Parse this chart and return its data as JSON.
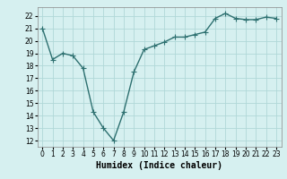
{
  "x": [
    0,
    1,
    2,
    3,
    4,
    5,
    6,
    7,
    8,
    9,
    10,
    11,
    12,
    13,
    14,
    15,
    16,
    17,
    18,
    19,
    20,
    21,
    22,
    23
  ],
  "y": [
    21.0,
    18.5,
    19.0,
    18.8,
    17.8,
    14.3,
    13.0,
    12.0,
    14.3,
    17.5,
    19.3,
    19.6,
    19.9,
    20.3,
    20.3,
    20.5,
    20.7,
    21.8,
    22.2,
    21.8,
    21.7,
    21.7,
    21.9,
    21.8
  ],
  "line_color": "#2d7070",
  "marker_color": "#2d7070",
  "bg_color": "#d6f0f0",
  "grid_color": "#b0d8d8",
  "xlabel": "Humidex (Indice chaleur)",
  "ylim": [
    11.5,
    22.7
  ],
  "xlim": [
    -0.5,
    23.5
  ],
  "yticks": [
    12,
    13,
    14,
    15,
    16,
    17,
    18,
    19,
    20,
    21,
    22
  ],
  "xticks": [
    0,
    1,
    2,
    3,
    4,
    5,
    6,
    7,
    8,
    9,
    10,
    11,
    12,
    13,
    14,
    15,
    16,
    17,
    18,
    19,
    20,
    21,
    22,
    23
  ],
  "tick_fontsize": 5.5,
  "xlabel_fontsize": 7,
  "linewidth": 1.0,
  "markersize": 2.0
}
